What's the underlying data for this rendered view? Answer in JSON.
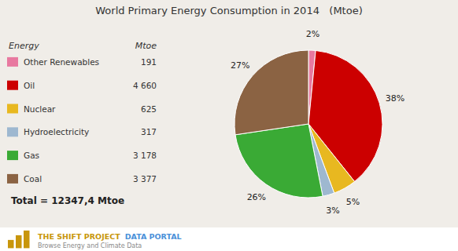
{
  "chart_data": {
    "type": "pie",
    "title": "World Primary Energy Consumption in 2014   (Mtoe)",
    "categories": [
      "Other Renewables",
      "Oil",
      "Nuclear",
      "Hydroelectricity",
      "Gas",
      "Coal"
    ],
    "values": [
      191,
      4660,
      625,
      317,
      3178,
      3377
    ],
    "value_labels": [
      "191",
      "4 660",
      "625",
      "317",
      "3 178",
      "3 377"
    ],
    "percentages": [
      2,
      38,
      5,
      3,
      26,
      27
    ],
    "percentage_labels": [
      "2%",
      "38%",
      "5%",
      "3%",
      "26%",
      "27%"
    ],
    "colors": [
      "#e879a0",
      "#cc0000",
      "#e8b820",
      "#9eb8d0",
      "#3aaa35",
      "#8b6343"
    ],
    "legend": "left",
    "legend_header": [
      "Energy",
      "Mtoe"
    ],
    "annotations": [
      "Total = 12347,4 Mtoe"
    ],
    "footer": [
      "THE SHIFT PROJECT",
      "DATA PORTAL",
      "Browse Energy and Climate Data"
    ]
  }
}
